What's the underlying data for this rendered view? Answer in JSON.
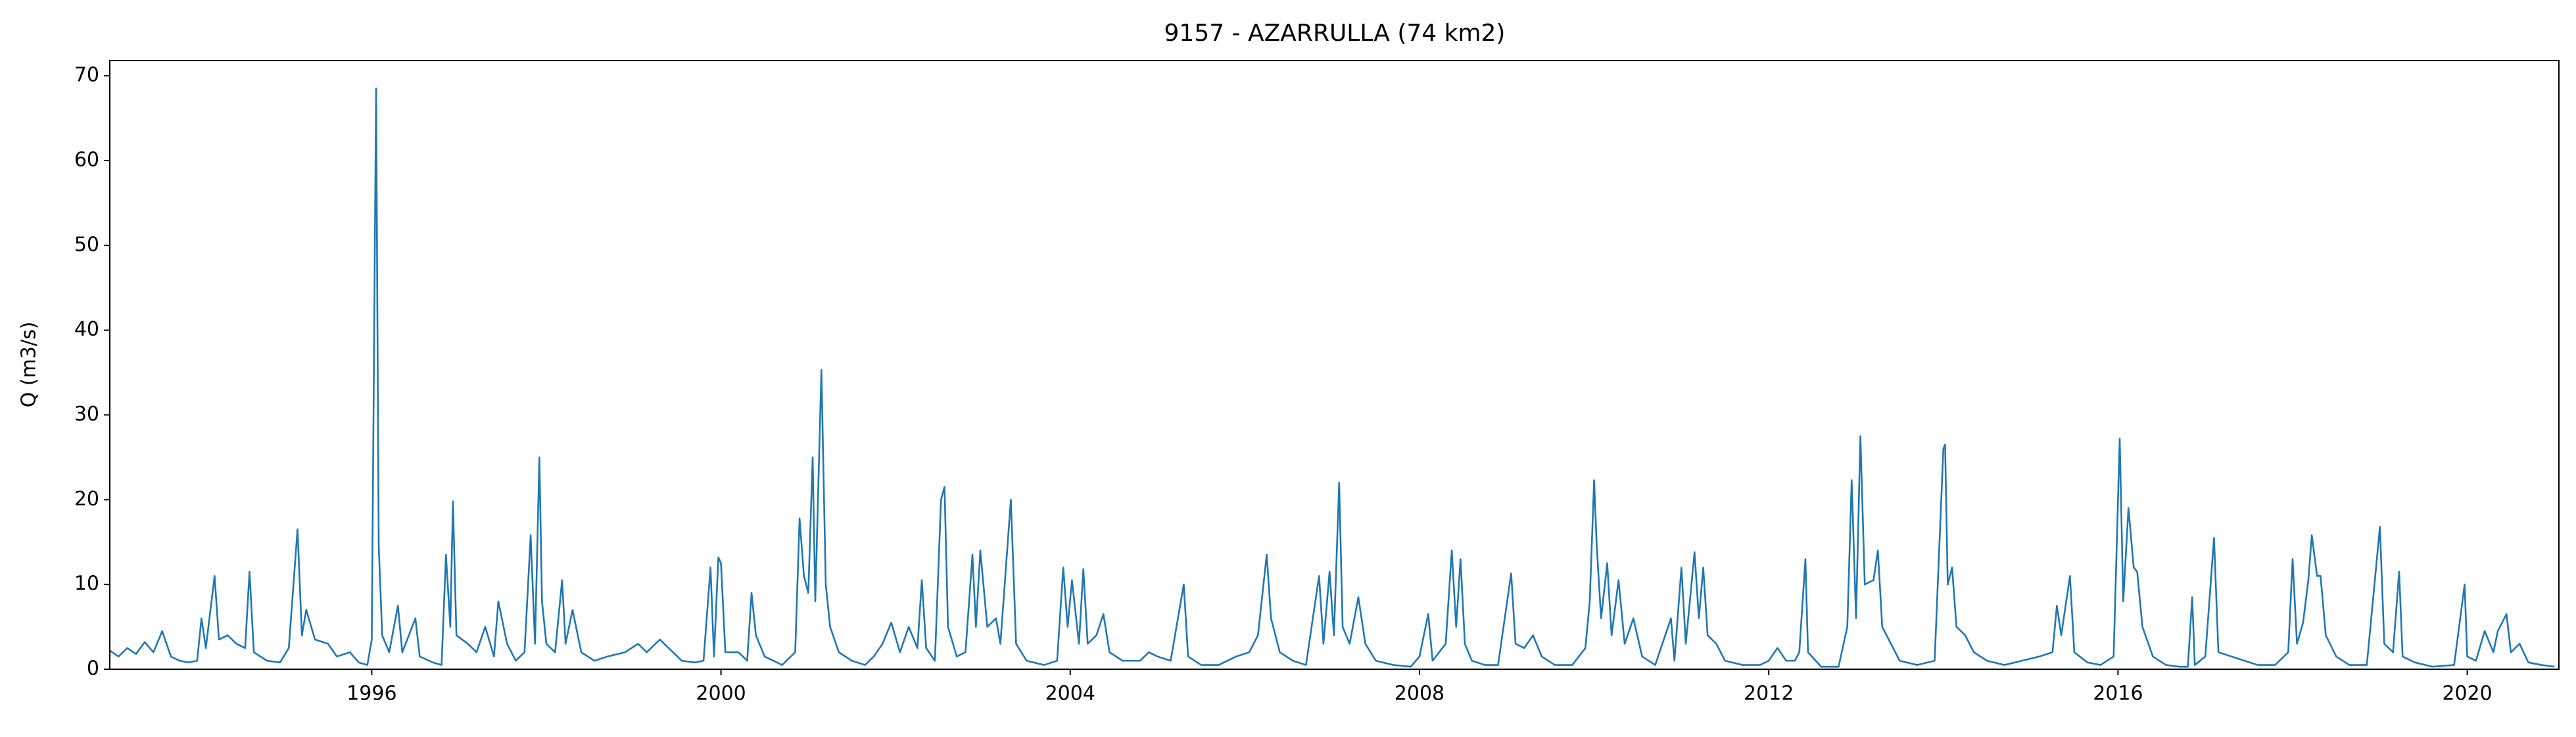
{
  "chart_data": {
    "type": "line",
    "title": "9157 - AZARRULLA (74 km2)",
    "y_label": "Q (m3/s)",
    "color": "#1f77b4",
    "xlim": [
      1993.0,
      2021.05
    ],
    "xticks": [
      1996,
      2000,
      2004,
      2008,
      2012,
      2016,
      2020
    ],
    "ylim": [
      0,
      71.8
    ],
    "yticks": [
      0,
      10,
      20,
      30,
      40,
      50,
      60,
      70
    ],
    "grid": false,
    "x": [
      1993.0,
      1993.1,
      1993.2,
      1993.3,
      1993.4,
      1993.5,
      1993.6,
      1993.7,
      1993.8,
      1993.9,
      1994.0,
      1994.05,
      1994.1,
      1994.2,
      1994.25,
      1994.35,
      1994.45,
      1994.55,
      1994.6,
      1994.65,
      1994.8,
      1994.95,
      1995.05,
      1995.15,
      1995.2,
      1995.25,
      1995.35,
      1995.5,
      1995.6,
      1995.75,
      1995.85,
      1995.95,
      1996.0,
      1996.05,
      1996.08,
      1996.12,
      1996.2,
      1996.3,
      1996.35,
      1996.5,
      1996.55,
      1996.7,
      1996.8,
      1996.85,
      1996.9,
      1996.93,
      1996.97,
      1997.1,
      1997.2,
      1997.3,
      1997.4,
      1997.45,
      1997.55,
      1997.65,
      1997.75,
      1997.82,
      1997.87,
      1997.92,
      1997.95,
      1998.0,
      1998.1,
      1998.18,
      1998.22,
      1998.3,
      1998.4,
      1998.55,
      1998.7,
      1998.9,
      1999.05,
      1999.15,
      1999.3,
      1999.4,
      1999.55,
      1999.7,
      1999.8,
      1999.88,
      1999.92,
      1999.97,
      2000.0,
      2000.05,
      2000.2,
      2000.3,
      2000.35,
      2000.4,
      2000.5,
      2000.7,
      2000.85,
      2000.9,
      2000.95,
      2001.0,
      2001.05,
      2001.08,
      2001.15,
      2001.2,
      2001.25,
      2001.35,
      2001.5,
      2001.65,
      2001.75,
      2001.85,
      2001.95,
      2002.05,
      2002.15,
      2002.25,
      2002.3,
      2002.35,
      2002.45,
      2002.52,
      2002.56,
      2002.6,
      2002.7,
      2002.8,
      2002.88,
      2002.92,
      2002.97,
      2003.05,
      2003.15,
      2003.2,
      2003.32,
      2003.38,
      2003.5,
      2003.7,
      2003.85,
      2003.92,
      2003.97,
      2004.02,
      2004.1,
      2004.15,
      2004.2,
      2004.3,
      2004.38,
      2004.45,
      2004.6,
      2004.8,
      2004.9,
      2005.0,
      2005.15,
      2005.3,
      2005.35,
      2005.5,
      2005.7,
      2005.9,
      2006.05,
      2006.15,
      2006.25,
      2006.3,
      2006.4,
      2006.55,
      2006.7,
      2006.85,
      2006.9,
      2006.97,
      2007.02,
      2007.08,
      2007.12,
      2007.2,
      2007.3,
      2007.38,
      2007.5,
      2007.7,
      2007.9,
      2008.0,
      2008.1,
      2008.15,
      2008.3,
      2008.37,
      2008.42,
      2008.47,
      2008.52,
      2008.6,
      2008.75,
      2008.9,
      2009.05,
      2009.1,
      2009.2,
      2009.3,
      2009.4,
      2009.55,
      2009.75,
      2009.9,
      2009.95,
      2010.0,
      2010.03,
      2010.08,
      2010.15,
      2010.2,
      2010.28,
      2010.35,
      2010.45,
      2010.55,
      2010.7,
      2010.88,
      2010.92,
      2011.0,
      2011.05,
      2011.15,
      2011.2,
      2011.25,
      2011.3,
      2011.4,
      2011.5,
      2011.7,
      2011.9,
      2012.0,
      2012.1,
      2012.2,
      2012.3,
      2012.35,
      2012.42,
      2012.45,
      2012.6,
      2012.8,
      2012.9,
      2012.95,
      2013.0,
      2013.05,
      2013.1,
      2013.2,
      2013.25,
      2013.3,
      2013.4,
      2013.5,
      2013.7,
      2013.9,
      2014.0,
      2014.02,
      2014.05,
      2014.1,
      2014.15,
      2014.25,
      2014.35,
      2014.5,
      2014.7,
      2014.9,
      2015.1,
      2015.25,
      2015.3,
      2015.35,
      2015.45,
      2015.5,
      2015.65,
      2015.8,
      2015.95,
      2016.02,
      2016.06,
      2016.12,
      2016.18,
      2016.22,
      2016.28,
      2016.4,
      2016.55,
      2016.7,
      2016.8,
      2016.85,
      2016.88,
      2017.0,
      2017.1,
      2017.15,
      2017.3,
      2017.45,
      2017.6,
      2017.8,
      2017.95,
      2018.0,
      2018.05,
      2018.12,
      2018.18,
      2018.22,
      2018.28,
      2018.32,
      2018.38,
      2018.5,
      2018.65,
      2018.85,
      2019.0,
      2019.05,
      2019.15,
      2019.22,
      2019.26,
      2019.4,
      2019.6,
      2019.85,
      2019.97,
      2020.0,
      2020.1,
      2020.2,
      2020.3,
      2020.35,
      2020.45,
      2020.5,
      2020.6,
      2020.7,
      2020.85,
      2021.0
    ],
    "values": [
      2.2,
      1.5,
      2.5,
      1.8,
      3.2,
      2.0,
      4.5,
      1.5,
      1.0,
      0.8,
      1.0,
      6.0,
      2.5,
      11.0,
      3.5,
      4.0,
      3.0,
      2.5,
      11.5,
      2.0,
      1.0,
      0.8,
      2.5,
      16.5,
      4.0,
      7.0,
      3.5,
      3.0,
      1.5,
      2.0,
      0.8,
      0.5,
      3.5,
      68.5,
      14.5,
      4.0,
      2.0,
      7.5,
      2.0,
      6.0,
      1.5,
      0.8,
      0.5,
      13.5,
      5.0,
      19.8,
      4.0,
      3.0,
      2.0,
      5.0,
      1.5,
      8.0,
      3.0,
      1.0,
      2.0,
      15.8,
      3.0,
      25.0,
      8.0,
      3.0,
      2.0,
      10.5,
      3.0,
      7.0,
      2.0,
      1.0,
      1.5,
      2.0,
      3.0,
      2.0,
      3.5,
      2.5,
      1.0,
      0.8,
      1.0,
      12.0,
      1.5,
      13.2,
      12.5,
      2.0,
      2.0,
      1.0,
      9.0,
      4.0,
      1.5,
      0.5,
      2.0,
      17.8,
      11.0,
      9.0,
      25.0,
      8.0,
      35.3,
      10.0,
      5.0,
      2.0,
      1.0,
      0.5,
      1.5,
      3.0,
      5.5,
      2.0,
      5.0,
      2.5,
      10.5,
      2.5,
      1.0,
      20.0,
      21.5,
      5.0,
      1.5,
      2.0,
      13.5,
      5.0,
      14.0,
      5.0,
      6.0,
      3.0,
      20.0,
      3.0,
      1.0,
      0.5,
      1.0,
      12.0,
      5.0,
      10.5,
      3.0,
      11.8,
      3.0,
      4.0,
      6.5,
      2.0,
      1.0,
      1.0,
      2.0,
      1.5,
      1.0,
      10.0,
      1.5,
      0.5,
      0.5,
      1.5,
      2.0,
      4.0,
      13.5,
      6.0,
      2.0,
      1.0,
      0.5,
      11.0,
      3.0,
      11.5,
      4.0,
      22.0,
      5.0,
      3.0,
      8.5,
      3.0,
      1.0,
      0.5,
      0.3,
      1.5,
      6.5,
      1.0,
      3.0,
      14.0,
      5.0,
      13.0,
      3.0,
      1.0,
      0.5,
      0.5,
      11.3,
      3.0,
      2.5,
      4.0,
      1.5,
      0.5,
      0.5,
      2.5,
      8.0,
      22.3,
      14.5,
      6.0,
      12.5,
      4.0,
      10.5,
      3.0,
      6.0,
      1.5,
      0.5,
      6.0,
      1.0,
      12.0,
      3.0,
      13.8,
      6.0,
      12.0,
      4.0,
      3.0,
      1.0,
      0.5,
      0.5,
      1.0,
      2.5,
      1.0,
      1.0,
      2.0,
      13.0,
      2.0,
      0.3,
      0.3,
      5.0,
      22.3,
      6.0,
      27.5,
      10.0,
      10.5,
      14.0,
      5.0,
      3.0,
      1.0,
      0.5,
      1.0,
      26.0,
      26.5,
      10.0,
      12.0,
      5.0,
      4.0,
      2.0,
      1.0,
      0.5,
      1.0,
      1.5,
      2.0,
      7.5,
      4.0,
      11.0,
      2.0,
      0.8,
      0.5,
      1.5,
      27.2,
      8.0,
      19.0,
      12.0,
      11.5,
      5.0,
      1.5,
      0.5,
      0.3,
      0.3,
      8.5,
      0.5,
      1.5,
      15.5,
      2.0,
      1.5,
      1.0,
      0.5,
      0.5,
      2.0,
      13.0,
      3.0,
      5.5,
      10.5,
      15.8,
      11.0,
      11.0,
      4.0,
      1.5,
      0.5,
      0.5,
      16.8,
      3.0,
      2.0,
      11.5,
      1.5,
      0.8,
      0.3,
      0.5,
      10.0,
      1.5,
      1.0,
      4.5,
      2.0,
      4.5,
      6.5,
      2.0,
      3.0,
      0.8,
      0.5,
      0.3
    ]
  }
}
